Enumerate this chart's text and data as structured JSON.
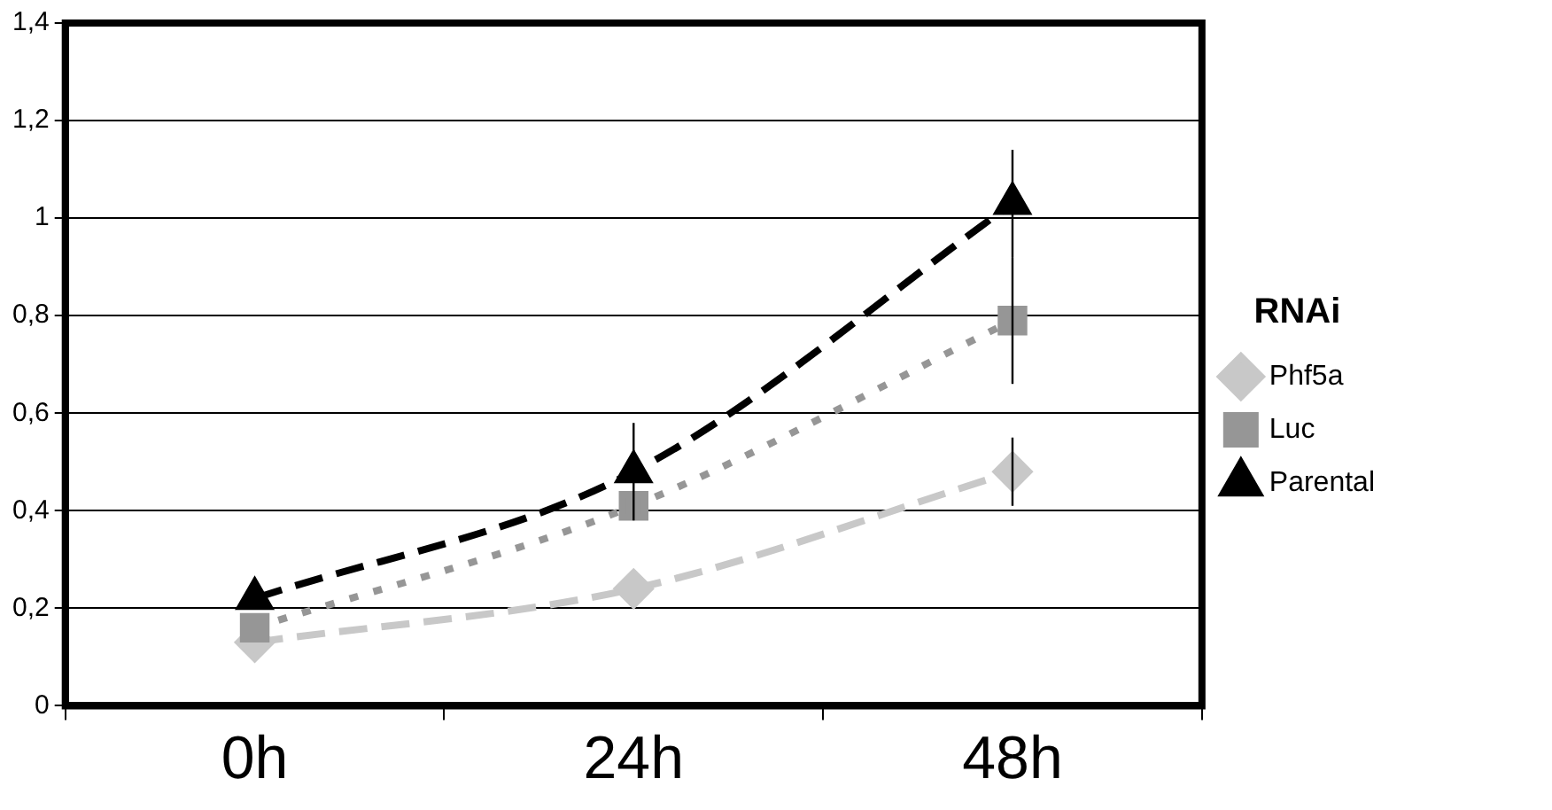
{
  "chart_data": {
    "type": "line",
    "categories": [
      "0h",
      "24h",
      "48h"
    ],
    "series": [
      {
        "name": "Phf5a",
        "color": "#c8c8c8",
        "marker": "diamond",
        "line_style": "dashed",
        "values": [
          0.13,
          0.24,
          0.48
        ],
        "errors": [
          null,
          null,
          0.07
        ]
      },
      {
        "name": "Luc",
        "color": "#969696",
        "marker": "square",
        "line_style": "dotted",
        "values": [
          0.16,
          0.41,
          0.79
        ],
        "errors": [
          null,
          null,
          0.13
        ]
      },
      {
        "name": "Parental",
        "color": "#000000",
        "marker": "triangle",
        "line_style": "dashed",
        "values": [
          0.22,
          0.48,
          1.03
        ],
        "errors": [
          null,
          0.1,
          0.11
        ]
      }
    ],
    "ylim": [
      0,
      1.4
    ],
    "yticks": [
      {
        "value": 0,
        "label": "0"
      },
      {
        "value": 0.2,
        "label": "0,2"
      },
      {
        "value": 0.4,
        "label": "0,4"
      },
      {
        "value": 0.6,
        "label": "0,6"
      },
      {
        "value": 0.8,
        "label": "0,8"
      },
      {
        "value": 1,
        "label": "1"
      },
      {
        "value": 1.2,
        "label": "1,2"
      },
      {
        "value": 1.4,
        "label": "1,4"
      }
    ],
    "grid": "y",
    "legend": "right",
    "legend_title": "RNAi"
  }
}
